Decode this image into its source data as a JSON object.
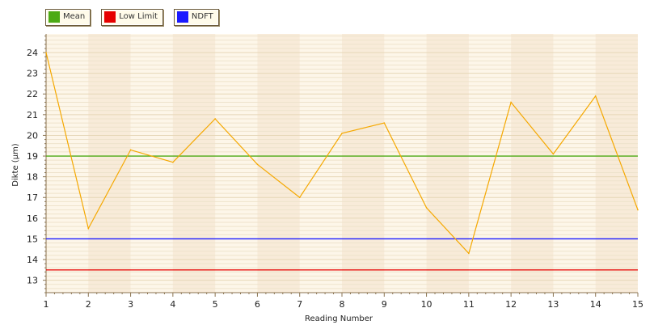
{
  "chart_data": {
    "type": "line",
    "xlabel": "Reading Number",
    "ylabel": "Dikte (µm)",
    "xlim": [
      1,
      15
    ],
    "ylim": [
      12.4,
      24.9
    ],
    "x": [
      1,
      2,
      3,
      4,
      5,
      6,
      7,
      8,
      9,
      10,
      11,
      12,
      13,
      14,
      15
    ],
    "x_ticks": [
      "1",
      "2",
      "3",
      "4",
      "5",
      "6",
      "7",
      "8",
      "9",
      "10",
      "11",
      "12",
      "13",
      "14",
      "15"
    ],
    "y_ticks": [
      "13",
      "14",
      "15",
      "16",
      "17",
      "18",
      "19",
      "20",
      "21",
      "22",
      "23",
      "24"
    ],
    "legend_position": "top-left",
    "grid": true,
    "series": [
      {
        "values": [
          24.0,
          15.5,
          19.3,
          18.7,
          20.8,
          18.6,
          17.0,
          20.1,
          20.6,
          16.5,
          14.3,
          21.6,
          19.1,
          21.9,
          16.4
        ],
        "color": "#f5a800"
      }
    ],
    "reference_lines": [
      {
        "name": "Mean",
        "value": 19.0,
        "color": "#4caa14"
      },
      {
        "name": "Low Limit",
        "value": 13.5,
        "color": "#e60000"
      },
      {
        "name": "NDFT",
        "value": 15.0,
        "color": "#1a1aff"
      }
    ],
    "background_colors": [
      "#fdf6e9",
      "#f8ebd9"
    ]
  }
}
